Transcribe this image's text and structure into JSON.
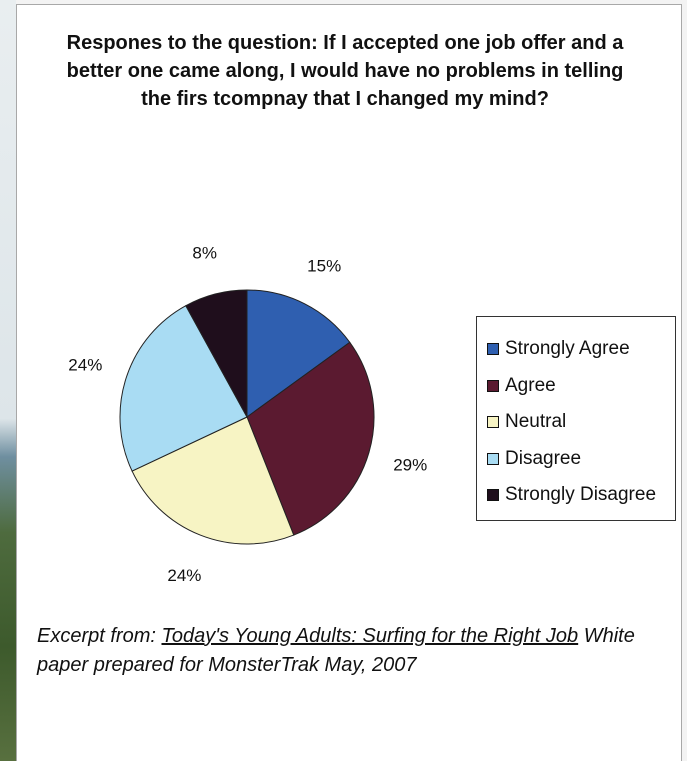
{
  "chart_data": {
    "type": "pie",
    "title": "Respones to the question: If I accepted one job offer and a better one came along, I would have no problems in telling the firs tcompnay that I changed my mind?",
    "categories": [
      "Strongly Agree",
      "Agree",
      "Neutral",
      "Disagree",
      "Strongly Disagree"
    ],
    "values": [
      15,
      29,
      24,
      24,
      8
    ],
    "labels": [
      "15%",
      "29%",
      "24%",
      "24%",
      "8%"
    ],
    "colors": [
      "#2f5fb0",
      "#5b1a30",
      "#f7f4c4",
      "#a9dcf3",
      "#1f0e1c"
    ],
    "legend_position": "right"
  },
  "caption": {
    "prefix": "Excerpt from: ",
    "link_text": "Today's Young Adults: Surfing for the Right Job",
    "suffix": " White paper prepared for MonsterTrak May, 2007"
  }
}
